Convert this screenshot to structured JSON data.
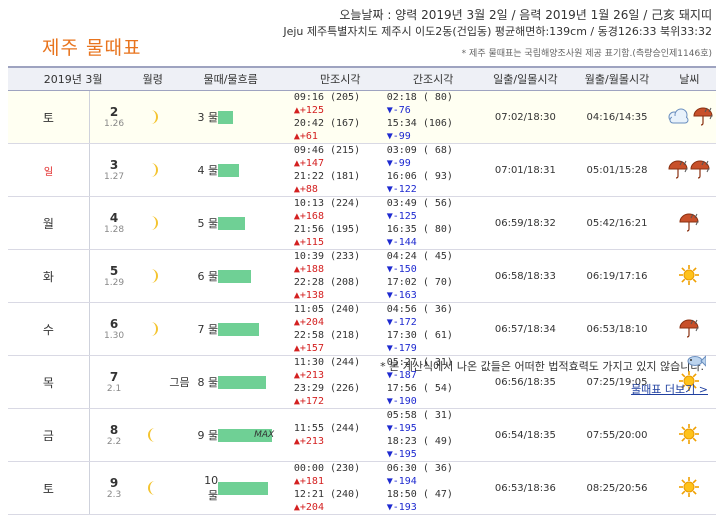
{
  "header": {
    "date_line": "오늘날짜 : 양력 2019년 3월 2일 / 음력 2019년 1월 26일 / 己亥 돼지띠",
    "location_line": "Jeju 제주특별자치도 제주시 이도2동(건입동) 평균해면하:139cm / 동경126:33 북위33:32",
    "title": "제주 물때표",
    "source_note": "* 제주 물때표는 국립해양조사원 제공 표기함.(측량승인제1146호)"
  },
  "table": {
    "columns": [
      "2019년 3월",
      "월령",
      "물때/물흐름",
      "만조시각",
      "간조시각",
      "일출/일몰시각",
      "월출/월몰시각",
      "날씨"
    ],
    "rows": [
      {
        "day": "토",
        "date": "2",
        "age": "1.26",
        "phase": "crescent-right",
        "moon_word": "",
        "mul": "3 물",
        "flow": 0.28,
        "max": "",
        "high": [
          {
            "t": "09:16 (205)",
            "d": "▲+125"
          },
          {
            "t": "20:42 (167)",
            "d": "▲+61"
          }
        ],
        "low": [
          {
            "t": "02:18 ( 80)",
            "d": "▼-76"
          },
          {
            "t": "15:34 (106)",
            "d": "▼-99"
          }
        ],
        "sun": "07:02/18:30",
        "moon": "04:16/14:35",
        "weather": [
          "cloud-icon",
          "rain-icon"
        ]
      },
      {
        "day": "일",
        "date": "3",
        "age": "1.27",
        "phase": "crescent-right",
        "moon_word": "",
        "mul": "4 물",
        "flow": 0.38,
        "max": "",
        "high": [
          {
            "t": "09:46 (215)",
            "d": "▲+147"
          },
          {
            "t": "21:22 (181)",
            "d": "▲+88"
          }
        ],
        "low": [
          {
            "t": "03:09 ( 68)",
            "d": "▼-99"
          },
          {
            "t": "16:06 ( 93)",
            "d": "▼-122"
          }
        ],
        "sun": "07:01/18:31",
        "moon": "05:01/15:28",
        "weather": [
          "rain-icon",
          "rain-icon"
        ]
      },
      {
        "day": "월",
        "date": "4",
        "age": "1.28",
        "phase": "crescent-right",
        "moon_word": "",
        "mul": "5 물",
        "flow": 0.5,
        "max": "",
        "high": [
          {
            "t": "10:13 (224)",
            "d": "▲+168"
          },
          {
            "t": "21:56 (195)",
            "d": "▲+115"
          }
        ],
        "low": [
          {
            "t": "03:49 ( 56)",
            "d": "▼-125"
          },
          {
            "t": "16:35 ( 80)",
            "d": "▼-144"
          }
        ],
        "sun": "06:59/18:32",
        "moon": "05:42/16:21",
        "weather": [
          "rain-icon"
        ]
      },
      {
        "day": "화",
        "date": "5",
        "age": "1.29",
        "phase": "crescent-right",
        "moon_word": "",
        "mul": "6 물",
        "flow": 0.62,
        "max": "",
        "high": [
          {
            "t": "10:39 (233)",
            "d": "▲+188"
          },
          {
            "t": "22:28 (208)",
            "d": "▲+138"
          }
        ],
        "low": [
          {
            "t": "04:24 ( 45)",
            "d": "▼-150"
          },
          {
            "t": "17:02 ( 70)",
            "d": "▼-163"
          }
        ],
        "sun": "06:58/18:33",
        "moon": "06:19/17:16",
        "weather": [
          "sun-icon"
        ]
      },
      {
        "day": "수",
        "date": "6",
        "age": "1.30",
        "phase": "crescent-right",
        "moon_word": "",
        "mul": "7 물",
        "flow": 0.75,
        "max": "",
        "high": [
          {
            "t": "11:05 (240)",
            "d": "▲+204"
          },
          {
            "t": "22:58 (218)",
            "d": "▲+157"
          }
        ],
        "low": [
          {
            "t": "04:56 ( 36)",
            "d": "▼-172"
          },
          {
            "t": "17:30 ( 61)",
            "d": "▼-179"
          }
        ],
        "sun": "06:57/18:34",
        "moon": "06:53/18:10",
        "weather": [
          "rain-icon"
        ]
      },
      {
        "day": "목",
        "date": "7",
        "age": "2.1",
        "phase": "none",
        "moon_word": "그믐",
        "mul": "8 물",
        "flow": 0.88,
        "max": "",
        "high": [
          {
            "t": "11:30 (244)",
            "d": "▲+213"
          },
          {
            "t": "23:29 (226)",
            "d": "▲+172"
          }
        ],
        "low": [
          {
            "t": "05:27 ( 31)",
            "d": "▼-187"
          },
          {
            "t": "17:56 ( 54)",
            "d": "▼-190"
          }
        ],
        "sun": "06:56/18:35",
        "moon": "07:25/19:05",
        "weather": [
          "sun-icon"
        ]
      },
      {
        "day": "금",
        "date": "8",
        "age": "2.2",
        "phase": "crescent-left",
        "moon_word": "",
        "mul": "9 물",
        "flow": 1.0,
        "max": "MAX",
        "high": [
          {
            "t": "11:55 (244)",
            "d": "▲+213"
          },
          {
            "t": "",
            "d": ""
          }
        ],
        "low": [
          {
            "t": "05:58 ( 31)",
            "d": "▼-195"
          },
          {
            "t": "18:23 ( 49)",
            "d": "▼-195"
          }
        ],
        "sun": "06:54/18:35",
        "moon": "07:55/20:00",
        "weather": [
          "sun-icon"
        ]
      },
      {
        "day": "토",
        "date": "9",
        "age": "2.3",
        "phase": "crescent-left",
        "moon_word": "",
        "mul": "10 물",
        "flow": 0.92,
        "max": "",
        "high": [
          {
            "t": "00:00 (230)",
            "d": "▲+181"
          },
          {
            "t": "12:21 (240)",
            "d": "▲+204"
          }
        ],
        "low": [
          {
            "t": "06:30 ( 36)",
            "d": "▼-194"
          },
          {
            "t": "18:50 ( 47)",
            "d": "▼-193"
          }
        ],
        "sun": "06:53/18:36",
        "moon": "08:25/20:56",
        "weather": [
          "sun-icon"
        ]
      }
    ]
  },
  "footer": {
    "note": "* 본 계산식에서 나온 값들은 어떠한 법적효력도 가지고 있지 않습니다.",
    "more_link": "물때표 더보기 >"
  }
}
